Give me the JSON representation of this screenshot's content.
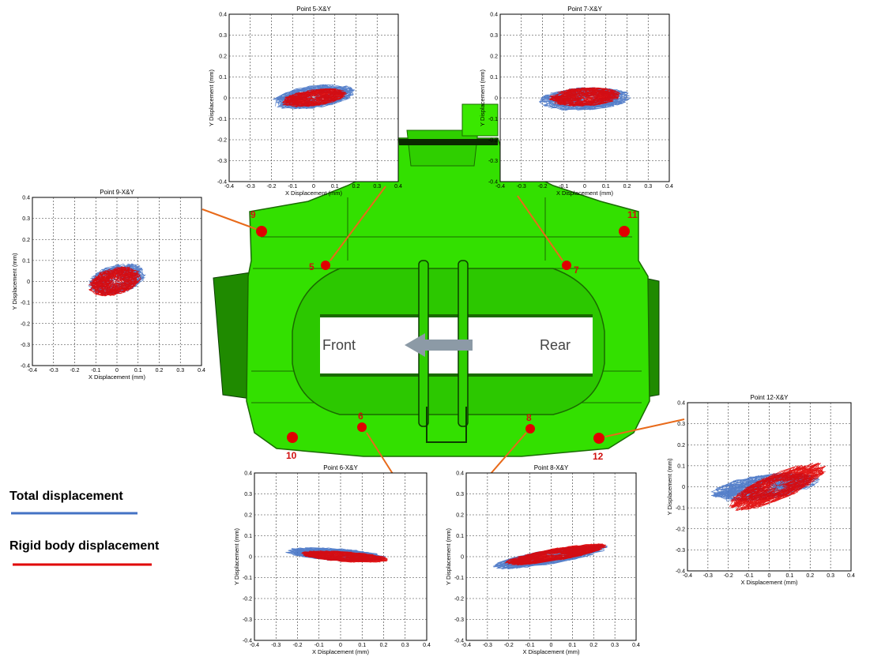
{
  "legend": {
    "total_label": "Total displacement",
    "total_color": "#4472c4",
    "rigid_label": "Rigid body displacement",
    "rigid_color": "#e00000"
  },
  "caliper": {
    "front_label": "Front",
    "rear_label": "Rear",
    "body_color": "#33e000",
    "marker_color": "#e00000",
    "points": [
      "5",
      "6",
      "7",
      "8",
      "9",
      "10",
      "11",
      "12"
    ]
  },
  "chart_data": [
    {
      "type": "scatter",
      "title": "Point 5-X&Y",
      "xlabel": "X Displacement (mm)",
      "ylabel": "Y Displacement (mm)",
      "xlim": [
        -0.4,
        0.4
      ],
      "ylim": [
        -0.4,
        0.4
      ],
      "xticks": [
        "-0.4",
        "-0.3",
        "-0.2",
        "-0.1",
        "0",
        "0.1",
        "0.2",
        "0.3",
        "0.4"
      ],
      "yticks": [
        "-0.4",
        "-0.3",
        "-0.2",
        "-0.1",
        "0",
        "0.1",
        "0.2",
        "0.3",
        "0.4"
      ],
      "grid": true,
      "series": [
        {
          "name": "Total displacement",
          "cx": 0.0,
          "cy": 0.005,
          "rx": 0.2,
          "ry": 0.055,
          "tilt": 8
        },
        {
          "name": "Rigid body displacement",
          "cx": 0.0,
          "cy": 0.0,
          "rx": 0.16,
          "ry": 0.04,
          "tilt": 8
        }
      ]
    },
    {
      "type": "scatter",
      "title": "Point 7-X&Y",
      "xlabel": "X Displacement (mm)",
      "ylabel": "Y Displacement (mm)",
      "xlim": [
        -0.4,
        0.4
      ],
      "ylim": [
        -0.4,
        0.4
      ],
      "xticks": [
        "-0.4",
        "-0.3",
        "-0.2",
        "-0.1",
        "0",
        "0.1",
        "0.2",
        "0.3",
        "0.4"
      ],
      "yticks": [
        "-0.4",
        "-0.3",
        "-0.2",
        "-0.1",
        "0",
        "0.1",
        "0.2",
        "0.3",
        "0.4"
      ],
      "grid": true,
      "series": [
        {
          "name": "Total displacement",
          "cx": 0.0,
          "cy": -0.005,
          "rx": 0.22,
          "ry": 0.055,
          "tilt": 3
        },
        {
          "name": "Rigid body displacement",
          "cx": 0.0,
          "cy": 0.005,
          "rx": 0.17,
          "ry": 0.045,
          "tilt": 3
        }
      ]
    },
    {
      "type": "scatter",
      "title": "Point 9-X&Y",
      "xlabel": "X Displacement (mm)",
      "ylabel": "Y Displacement (mm)",
      "xlim": [
        -0.4,
        0.4
      ],
      "ylim": [
        -0.4,
        0.4
      ],
      "xticks": [
        "-0.4",
        "-0.3",
        "-0.2",
        "-0.1",
        "0",
        "0.1",
        "0.2",
        "0.3",
        "0.4"
      ],
      "yticks": [
        "-0.4",
        "-0.3",
        "-0.2",
        "-0.1",
        "0",
        "0.1",
        "0.2",
        "0.3",
        "0.4"
      ],
      "grid": true,
      "series": [
        {
          "name": "Total displacement",
          "cx": 0.0,
          "cy": 0.01,
          "rx": 0.14,
          "ry": 0.07,
          "tilt": 15
        },
        {
          "name": "Rigid body displacement",
          "cx": -0.01,
          "cy": 0.0,
          "rx": 0.13,
          "ry": 0.065,
          "tilt": 15
        }
      ]
    },
    {
      "type": "scatter",
      "title": "Point 6-X&Y",
      "xlabel": "X Displacement (mm)",
      "ylabel": "Y Displacement (mm)",
      "xlim": [
        -0.4,
        0.4
      ],
      "ylim": [
        -0.4,
        0.4
      ],
      "xticks": [
        "-0.4",
        "-0.3",
        "-0.2",
        "-0.1",
        "0",
        "0.1",
        "0.2",
        "0.3",
        "0.4"
      ],
      "yticks": [
        "-0.4",
        "-0.3",
        "-0.2",
        "-0.1",
        "0",
        "0.1",
        "0.2",
        "0.3",
        "0.4"
      ],
      "grid": true,
      "series": [
        {
          "name": "Total displacement",
          "cx": -0.02,
          "cy": 0.01,
          "rx": 0.24,
          "ry": 0.03,
          "tilt": -4
        },
        {
          "name": "Rigid body displacement",
          "cx": 0.02,
          "cy": 0.0,
          "rx": 0.21,
          "ry": 0.025,
          "tilt": -4
        }
      ]
    },
    {
      "type": "scatter",
      "title": "Point 8-X&Y",
      "xlabel": "X Displacement (mm)",
      "ylabel": "Y Displacement (mm)",
      "xlim": [
        -0.4,
        0.4
      ],
      "ylim": [
        -0.4,
        0.4
      ],
      "xticks": [
        "-0.4",
        "-0.3",
        "-0.2",
        "-0.1",
        "0",
        "0.1",
        "0.2",
        "0.3",
        "0.4"
      ],
      "yticks": [
        "-0.4",
        "-0.3",
        "-0.2",
        "-0.1",
        "0",
        "0.1",
        "0.2",
        "0.3",
        "0.4"
      ],
      "grid": true,
      "series": [
        {
          "name": "Total displacement",
          "cx": 0.0,
          "cy": 0.0,
          "rx": 0.28,
          "ry": 0.035,
          "tilt": 10
        },
        {
          "name": "Rigid body displacement",
          "cx": 0.02,
          "cy": 0.01,
          "rx": 0.25,
          "ry": 0.03,
          "tilt": 10
        }
      ]
    },
    {
      "type": "scatter",
      "title": "Point 12-X&Y",
      "xlabel": "X Displacement (mm)",
      "ylabel": "Y Displacement (mm)",
      "xlim": [
        -0.4,
        0.4
      ],
      "ylim": [
        -0.4,
        0.4
      ],
      "xticks": [
        "-0.4",
        "-0.3",
        "-0.2",
        "-0.1",
        "0",
        "0.1",
        "0.2",
        "0.3",
        "0.4"
      ],
      "yticks": [
        "-0.4",
        "-0.3",
        "-0.2",
        "-0.1",
        "0",
        "0.1",
        "0.2",
        "0.3",
        "0.4"
      ],
      "grid": true,
      "series": [
        {
          "name": "Total displacement",
          "cx": -0.02,
          "cy": 0.0,
          "rx": 0.27,
          "ry": 0.06,
          "tilt": 8
        },
        {
          "name": "Rigid body displacement",
          "cx": 0.04,
          "cy": 0.0,
          "rx": 0.26,
          "ry": 0.065,
          "tilt": 22
        }
      ]
    }
  ]
}
